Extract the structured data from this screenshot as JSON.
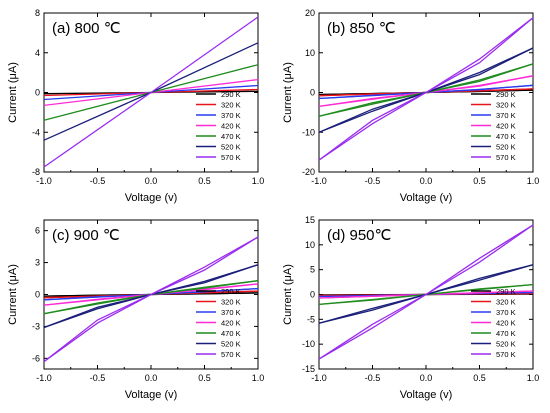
{
  "legend_labels": [
    "290 K",
    "320 K",
    "370 K",
    "420 K",
    "470 K",
    "520 K",
    "570 K"
  ],
  "colors": {
    "290 K": "#000000",
    "320 K": "#e8141a",
    "370 K": "#2a3cf0",
    "420 K": "#ff2bd6",
    "470 K": "#1f8c1f",
    "520 K": "#1a1f7a",
    "570 K": "#9a2cf0"
  },
  "chart_data": [
    {
      "type": "line",
      "panel": "a",
      "title": "(a) 800 ℃",
      "xlabel": "Voltage (v)",
      "ylabel": "Current (μA)",
      "xlim": [
        -1.0,
        1.0
      ],
      "ylim": [
        -8,
        8
      ],
      "x_ticks": [
        -1.0,
        -0.5,
        0.0,
        0.5,
        1.0
      ],
      "x_tick_labels": [
        "-1.0",
        "-0.5",
        "0.0",
        "0.5",
        "1.0"
      ],
      "y_ticks": [
        -8,
        -4,
        0,
        4,
        8
      ],
      "y_tick_labels": [
        "-8",
        "-4",
        "0",
        "4",
        "8"
      ],
      "legend": "bottom-right",
      "grid": false,
      "series": [
        {
          "name": "290 K",
          "x": [
            -1.0,
            0.0,
            1.0
          ],
          "y": [
            -0.12,
            0.0,
            0.12
          ]
        },
        {
          "name": "320 K",
          "x": [
            -1.0,
            0.0,
            1.0
          ],
          "y": [
            -0.3,
            0.0,
            0.3
          ]
        },
        {
          "name": "370 K",
          "x": [
            -1.0,
            0.0,
            1.0
          ],
          "y": [
            -0.7,
            0.0,
            0.7
          ]
        },
        {
          "name": "420 K",
          "x": [
            -1.0,
            0.0,
            1.0
          ],
          "y": [
            -1.3,
            0.0,
            1.3
          ]
        },
        {
          "name": "470 K",
          "x": [
            -1.0,
            0.0,
            1.0
          ],
          "y": [
            -2.8,
            0.0,
            2.8
          ]
        },
        {
          "name": "520 K",
          "x": [
            -1.0,
            0.0,
            1.0
          ],
          "y": [
            -4.8,
            0.0,
            5.0
          ]
        },
        {
          "name": "570 K",
          "x": [
            -1.0,
            0.0,
            1.0
          ],
          "y": [
            -7.5,
            0.0,
            7.6
          ]
        }
      ]
    },
    {
      "type": "line",
      "panel": "b",
      "title": "(b) 850 ℃",
      "xlabel": "Voltage (v)",
      "ylabel": "Current (μA)",
      "xlim": [
        -1.0,
        1.0
      ],
      "ylim": [
        -20,
        20
      ],
      "x_ticks": [
        -1.0,
        -0.5,
        0.0,
        0.5,
        1.0
      ],
      "x_tick_labels": [
        "-1.0",
        "-0.5",
        "0.0",
        "0.5",
        "1.0"
      ],
      "y_ticks": [
        -20,
        -10,
        0,
        10,
        20
      ],
      "y_tick_labels": [
        "-20",
        "-10",
        "0",
        "10",
        "20"
      ],
      "legend": "bottom-right",
      "grid": false,
      "series": [
        {
          "name": "290 K",
          "x": [
            -1.0,
            -0.5,
            0.0,
            0.5,
            1.0
          ],
          "y": [
            -0.5,
            -0.25,
            0.0,
            0.25,
            0.6
          ]
        },
        {
          "name": "320 K",
          "x": [
            -1.0,
            -0.5,
            0.0,
            0.5,
            1.0
          ],
          "y": [
            -0.8,
            -0.35,
            0.0,
            0.4,
            0.9
          ]
        },
        {
          "name": "370 K",
          "x": [
            -1.0,
            -0.5,
            0.0,
            0.5,
            1.0
          ],
          "y": [
            -1.5,
            -0.7,
            0.0,
            0.7,
            1.8
          ]
        },
        {
          "name": "420 K",
          "x": [
            -1.0,
            -0.5,
            0.0,
            0.5,
            1.0
          ],
          "y": [
            -3.5,
            -1.5,
            0.0,
            1.6,
            4.2
          ]
        },
        {
          "name": "470 K",
          "x": [
            -1.0,
            -0.5,
            0.0,
            0.5,
            1.0
          ],
          "y": [
            -6.0,
            -2.6,
            0.0,
            2.8,
            7.2
          ]
        },
        {
          "name": "520 K",
          "x": [
            -1.0,
            -0.5,
            0.0,
            0.5,
            1.0
          ],
          "y": [
            -10.0,
            -4.2,
            0.0,
            4.5,
            11.2
          ]
        },
        {
          "name": "570 K",
          "x": [
            -1.0,
            -0.5,
            0.0,
            0.5,
            1.0
          ],
          "y": [
            -17.0,
            -7.0,
            0.0,
            7.5,
            18.8
          ]
        }
      ]
    },
    {
      "type": "line",
      "panel": "c",
      "title": "(c) 900 ℃",
      "xlabel": "Voltage (v)",
      "ylabel": "Current (μA)",
      "xlim": [
        -1.0,
        1.0
      ],
      "ylim": [
        -7,
        7
      ],
      "x_ticks": [
        -1.0,
        -0.5,
        0.0,
        0.5,
        1.0
      ],
      "x_tick_labels": [
        "-1.0",
        "-0.5",
        "0.0",
        "0.5",
        "1.0"
      ],
      "y_ticks": [
        -6,
        -3,
        0,
        3,
        6
      ],
      "y_tick_labels": [
        "-6",
        "-3",
        "0",
        "3",
        "6"
      ],
      "legend": "bottom-right",
      "grid": false,
      "series": [
        {
          "name": "290 K",
          "x": [
            -1.0,
            -0.5,
            0.0,
            0.5,
            1.0
          ],
          "y": [
            -0.15,
            -0.07,
            0.0,
            0.07,
            0.15
          ]
        },
        {
          "name": "320 K",
          "x": [
            -1.0,
            -0.5,
            0.0,
            0.5,
            1.0
          ],
          "y": [
            -0.3,
            -0.14,
            0.0,
            0.15,
            0.32
          ]
        },
        {
          "name": "370 K",
          "x": [
            -1.0,
            -0.5,
            0.0,
            0.5,
            1.0
          ],
          "y": [
            -0.5,
            -0.22,
            0.0,
            0.25,
            0.55
          ]
        },
        {
          "name": "420 K",
          "x": [
            -1.0,
            -0.5,
            0.0,
            0.5,
            1.0
          ],
          "y": [
            -1.0,
            -0.45,
            0.0,
            0.45,
            1.0
          ]
        },
        {
          "name": "470 K",
          "x": [
            -1.0,
            -0.5,
            0.0,
            0.5,
            1.0
          ],
          "y": [
            -1.8,
            -0.8,
            0.0,
            0.6,
            1.3
          ]
        },
        {
          "name": "520 K",
          "x": [
            -1.0,
            -0.5,
            0.0,
            0.5,
            1.0
          ],
          "y": [
            -3.1,
            -1.2,
            0.0,
            1.1,
            2.8
          ]
        },
        {
          "name": "570 K",
          "x": [
            -1.0,
            -0.5,
            0.0,
            0.5,
            1.0
          ],
          "y": [
            -6.3,
            -2.4,
            0.0,
            2.3,
            5.4
          ]
        }
      ]
    },
    {
      "type": "line",
      "panel": "d",
      "title": "(d) 950℃",
      "xlabel": "Voltage (v)",
      "ylabel": "Current (μA)",
      "xlim": [
        -1.0,
        1.0
      ],
      "ylim": [
        -15,
        15
      ],
      "x_ticks": [
        -1.0,
        -0.5,
        0.0,
        0.5,
        1.0
      ],
      "x_tick_labels": [
        "-1.0",
        "-0.5",
        "0.0",
        "0.5",
        "1.0"
      ],
      "y_ticks": [
        -15,
        -10,
        -5,
        0,
        5,
        10,
        15
      ],
      "y_tick_labels": [
        "-15",
        "-10",
        "-5",
        "0",
        "5",
        "10",
        "15"
      ],
      "legend": "bottom-right",
      "grid": false,
      "series": [
        {
          "name": "290 K",
          "x": [
            -1.0,
            -0.5,
            0.0,
            0.5,
            1.0
          ],
          "y": [
            -0.1,
            -0.05,
            0.0,
            0.05,
            0.1
          ]
        },
        {
          "name": "320 K",
          "x": [
            -1.0,
            -0.5,
            0.0,
            0.5,
            1.0
          ],
          "y": [
            -0.2,
            -0.1,
            0.0,
            0.1,
            0.2
          ]
        },
        {
          "name": "370 K",
          "x": [
            -1.0,
            -0.5,
            0.0,
            0.5,
            1.0
          ],
          "y": [
            -0.4,
            -0.2,
            0.0,
            0.2,
            0.4
          ]
        },
        {
          "name": "420 K",
          "x": [
            -1.0,
            -0.5,
            0.0,
            0.5,
            1.0
          ],
          "y": [
            -0.7,
            -0.35,
            0.0,
            0.35,
            0.7
          ]
        },
        {
          "name": "470 K",
          "x": [
            -1.0,
            -0.5,
            0.0,
            0.5,
            1.0
          ],
          "y": [
            -2.0,
            -1.0,
            0.0,
            1.0,
            2.0
          ]
        },
        {
          "name": "520 K",
          "x": [
            -1.0,
            -0.5,
            0.0,
            0.5,
            1.0
          ],
          "y": [
            -5.8,
            -2.8,
            0.0,
            2.9,
            6.0
          ]
        },
        {
          "name": "570 K",
          "x": [
            -1.0,
            -0.5,
            0.0,
            0.5,
            1.0
          ],
          "y": [
            -13.0,
            -6.0,
            0.0,
            6.5,
            14.0
          ]
        }
      ]
    }
  ]
}
